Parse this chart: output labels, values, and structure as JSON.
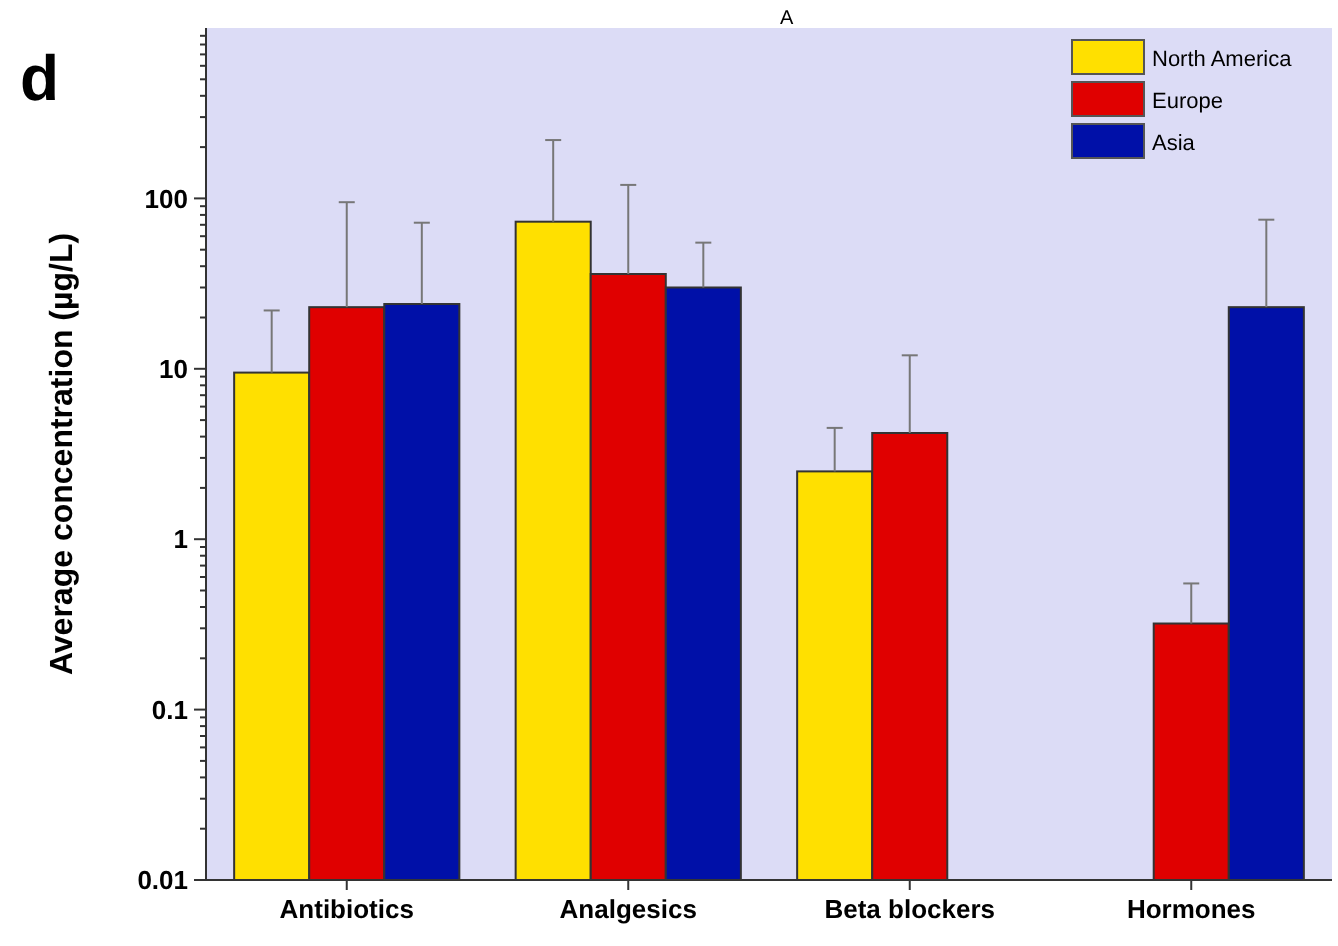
{
  "chart_data": {
    "type": "bar",
    "ylabel": "Average concentration (µg/L)",
    "categories": [
      "Antibiotics",
      "Analgesics",
      "Beta blockers",
      "Hormones"
    ],
    "series": [
      {
        "name": "North America",
        "color": "#ffe000",
        "values": [
          9.5,
          73,
          2.5,
          null
        ],
        "errors": [
          [
            9.5,
            22
          ],
          [
            73,
            220
          ],
          [
            2.5,
            4.5
          ],
          null
        ]
      },
      {
        "name": "Europe",
        "color": "#e00000",
        "values": [
          23,
          36,
          4.2,
          0.32
        ],
        "errors": [
          [
            23,
            95
          ],
          [
            36,
            120
          ],
          [
            4.2,
            12
          ],
          [
            0.32,
            0.55
          ]
        ]
      },
      {
        "name": "Asia",
        "color": "#0010a8",
        "values": [
          24,
          30,
          null,
          23
        ],
        "errors": [
          [
            24,
            72
          ],
          [
            30,
            55
          ],
          null,
          [
            23,
            75
          ]
        ]
      }
    ],
    "log": true,
    "ylim": [
      0.01,
      1000
    ],
    "yticks": [
      0.01,
      0.1,
      1,
      10,
      100
    ],
    "legend": "top right",
    "annotations": [
      "d",
      "A"
    ]
  }
}
